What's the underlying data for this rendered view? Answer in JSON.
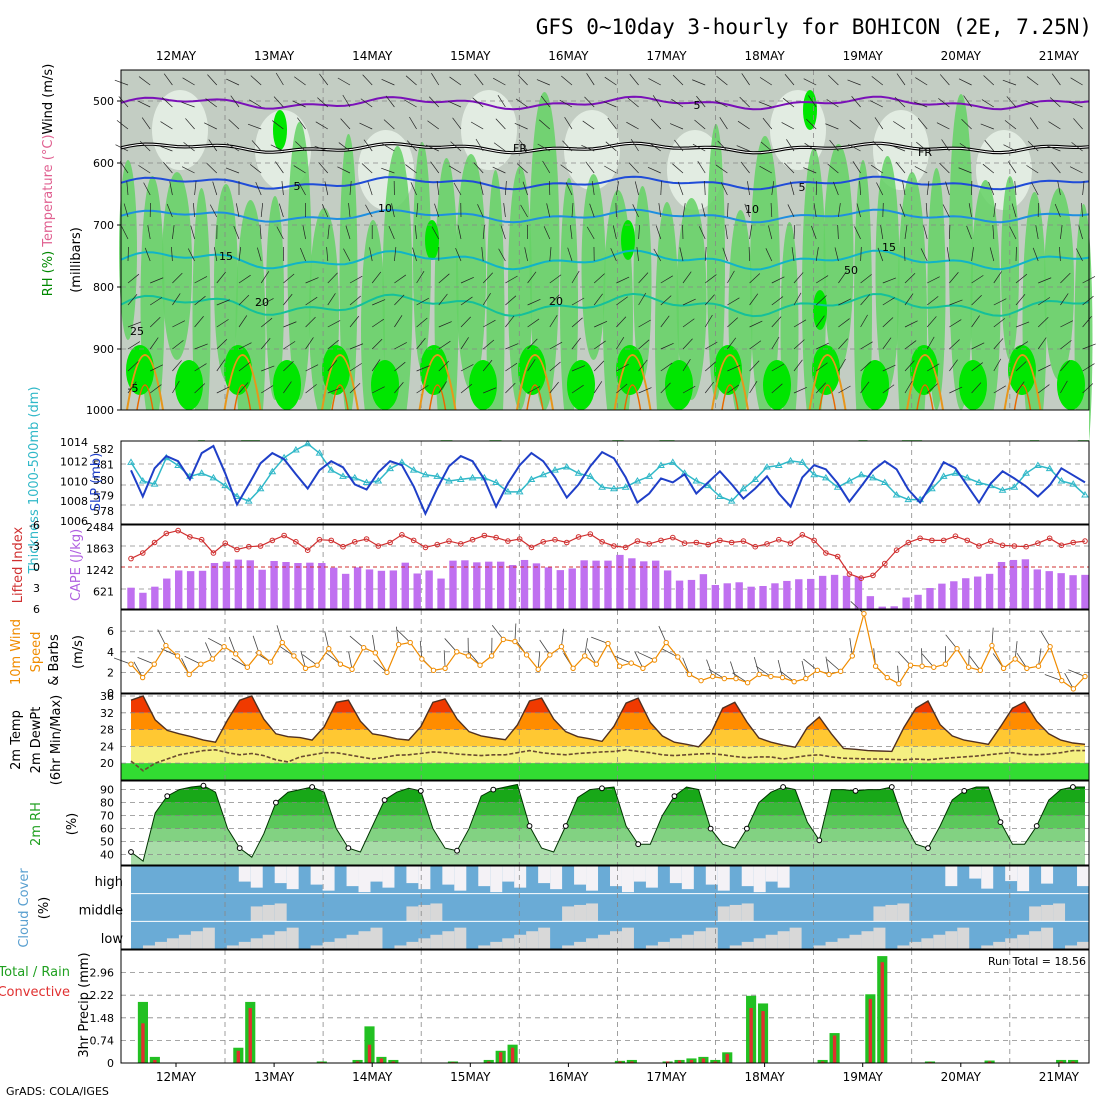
{
  "title": "GFS 0~10day 3-hourly for BOHICON (2E, 7.25N)",
  "footer": "GrADS: COLA/IGES",
  "dates": [
    "12MAY",
    "13MAY",
    "14MAY",
    "15MAY",
    "16MAY",
    "17MAY",
    "18MAY",
    "19MAY",
    "20MAY",
    "21MAY"
  ],
  "colors": {
    "rh_light": "#e6efe6",
    "rh_mid": "#c3cdc3",
    "rh_green": "#64d264",
    "rh_bright": "#00e600",
    "slp": "#1f3fc8",
    "thickness": "#30b8c8",
    "lifted": "#d03030",
    "cape": "#c070f0",
    "wind10": "#f08c00",
    "temp_hot": "#f03a00",
    "temp_warm": "#ff8c00",
    "temp_mid": "#ffc832",
    "temp_yel": "#f5f082",
    "temp_grn": "#32dc32",
    "rh2m": "#00a000",
    "cloud": "#6aabd6",
    "cloud_gap": "#d8d8d8",
    "precip_total": "#22c022",
    "precip_conv": "#e03030"
  },
  "chart_data": [
    {
      "panel": "upper_air",
      "type": "heatmap",
      "ylabel_parts": [
        "RH (%)",
        "Temperature (°C)",
        "Wind (m/s)"
      ],
      "ylabel2": "(millibars)",
      "y_ticks": [
        "500",
        "600",
        "700",
        "800",
        "900",
        "1000"
      ],
      "contour_labels": [
        "5",
        "FR",
        "5",
        "10",
        "15",
        "20",
        "25",
        "-5",
        "5",
        "10",
        "15",
        "20",
        "FR",
        "50"
      ]
    },
    {
      "panel": "slp_thickness",
      "type": "line",
      "left_label": "Thickness 1000-500mb (dm)",
      "right_label": "SLP (mb)",
      "left_ticks": [
        "582",
        "581",
        "580",
        "579",
        "578"
      ],
      "right_ticks": [
        "1014",
        "1012",
        "1010",
        "1008",
        "1006"
      ],
      "series": [
        {
          "name": "SLP (mb)",
          "values": [
            1011.2,
            1008.6,
            1011.4,
            1012.6,
            1012.1,
            1010.3,
            1012.9,
            1013.6,
            1010.9,
            1007.8,
            1009.8,
            1011.9,
            1012.9,
            1012.3,
            1010.8,
            1009.4,
            1011.2,
            1012.1,
            1011.5,
            1009.8,
            1009.3,
            1011.0,
            1012.1,
            1011.7,
            1009.6,
            1006.9,
            1009.4,
            1011.6,
            1012.6,
            1012.1,
            1010.3,
            1007.6,
            1009.9,
            1011.7,
            1012.9,
            1012.1,
            1010.5,
            1008.5,
            1009.8,
            1011.6,
            1013.0,
            1012.4,
            1010.5,
            1008.0,
            1008.9,
            1010.4,
            1010.0,
            1010.8,
            1008.9,
            1010.0,
            1011.1,
            1009.8,
            1008.4,
            1009.4,
            1010.6,
            1008.9,
            1007.6,
            1010.5,
            1011.7,
            1011.3,
            1009.9,
            1008.1,
            1009.6,
            1011.2,
            1012.1,
            1011.3,
            1009.3,
            1008.0,
            1009.9,
            1012.0,
            1011.4,
            1009.7,
            1008.0,
            1009.9,
            1011.1,
            1010.4,
            1009.6,
            1008.6,
            1009.7,
            1011.4,
            1010.7,
            1010.0
          ]
        },
        {
          "name": "Thickness (dm)",
          "values": [
            581.2,
            580.0,
            579.8,
            581.5,
            581.0,
            580.3,
            580.5,
            580.2,
            579.7,
            579.0,
            578.7,
            579.5,
            580.6,
            581.5,
            582.0,
            582.4,
            581.8,
            580.7,
            580.3,
            580.2,
            579.9,
            580.0,
            580.8,
            581.2,
            580.7,
            580.4,
            580.3,
            580.0,
            580.1,
            580.2,
            580.2,
            579.9,
            579.3,
            579.3,
            580.1,
            580.4,
            580.7,
            580.9,
            580.5,
            580.3,
            579.6,
            579.5,
            579.6,
            580.0,
            580.3,
            581.0,
            581.2,
            580.5,
            580.0,
            579.7,
            579.0,
            578.7,
            579.5,
            580.1,
            580.9,
            581.0,
            581.3,
            581.2,
            580.4,
            580.2,
            579.6,
            580.0,
            580.4,
            580.2,
            579.9,
            579.1,
            578.8,
            578.8,
            579.5,
            580.3,
            580.5,
            580.2,
            579.9,
            579.7,
            579.4,
            579.6,
            580.5,
            581.0,
            580.8,
            580.0,
            579.8,
            579.1
          ]
        }
      ]
    },
    {
      "panel": "cape_lifted",
      "type": "bar",
      "left_label": "Lifted Index",
      "right_label": "CAPE (J/kg)",
      "left_ticks": [
        "-6",
        "-3",
        "0",
        "3",
        "6"
      ],
      "right_ticks": [
        "2484",
        "1863",
        "1242",
        "621"
      ],
      "series": [
        {
          "name": "CAPE (J/kg)",
          "values": [
            630,
            480,
            660,
            900,
            1140,
            1120,
            1130,
            1360,
            1400,
            1460,
            1440,
            1160,
            1420,
            1390,
            1360,
            1370,
            1360,
            1220,
            1040,
            1230,
            1170,
            1130,
            1140,
            1370,
            1050,
            1140,
            900,
            1430,
            1440,
            1380,
            1400,
            1400,
            1300,
            1450,
            1350,
            1230,
            1150,
            1200,
            1440,
            1430,
            1430,
            1600,
            1500,
            1410,
            1430,
            1140,
            840,
            860,
            1030,
            710,
            760,
            790,
            660,
            680,
            760,
            830,
            880,
            890,
            980,
            1010,
            980,
            950,
            380,
            70,
            80,
            340,
            420,
            620,
            750,
            820,
            910,
            960,
            1040,
            1390,
            1450,
            1470,
            1170,
            1120,
            1060,
            1000,
            1010
          ]
        },
        {
          "name": "Lifted Index",
          "values": [
            -1.2,
            -2.0,
            -3.5,
            -4.8,
            -5.2,
            -4.3,
            -3.9,
            -2.0,
            -3.4,
            -2.5,
            -2.9,
            -3.0,
            -3.8,
            -4.5,
            -3.6,
            -2.4,
            -3.9,
            -3.8,
            -2.9,
            -3.6,
            -4.0,
            -3.0,
            -3.5,
            -4.6,
            -3.8,
            -2.8,
            -3.2,
            -3.7,
            -3.3,
            -3.9,
            -4.5,
            -4.2,
            -3.7,
            -4.0,
            -2.8,
            -3.6,
            -3.9,
            -3.5,
            -4.3,
            -4.7,
            -3.6,
            -3.0,
            -2.8,
            -3.7,
            -3.3,
            -3.8,
            -4.2,
            -3.4,
            -3.5,
            -3.2,
            -3.8,
            -3.5,
            -3.7,
            -2.9,
            -3.3,
            -3.9,
            -3.4,
            -4.6,
            -3.8,
            -2.0,
            -1.5,
            1.0,
            1.6,
            1.2,
            -0.5,
            -2.4,
            -3.5,
            -4.1,
            -3.8,
            -3.8,
            -4.4,
            -3.8,
            -3.0,
            -3.7,
            -3.1,
            -3.0,
            -2.9,
            -3.4,
            -4.1,
            -3.1,
            -3.5,
            -3.7
          ]
        }
      ]
    },
    {
      "panel": "wind10m",
      "type": "line",
      "ylabel_parts": [
        "10m Wind",
        "Speed",
        "& Barbs"
      ],
      "ylabel2": "(m/s)",
      "y_ticks": [
        "0",
        "2",
        "4",
        "6"
      ],
      "series": [
        {
          "name": "Speed (m/s)",
          "values": [
            2.8,
            1.5,
            2.8,
            4.6,
            3.6,
            1.8,
            2.8,
            3.3,
            4.5,
            3.8,
            2.5,
            3.9,
            3.0,
            4.9,
            3.6,
            2.4,
            2.7,
            4.3,
            2.8,
            2.3,
            4.4,
            3.9,
            2.0,
            4.7,
            4.9,
            3.3,
            2.2,
            2.4,
            4.0,
            3.6,
            2.7,
            3.6,
            5.2,
            5.0,
            3.7,
            2.3,
            3.7,
            4.5,
            2.4,
            3.6,
            2.8,
            4.8,
            2.6,
            2.9,
            2.4,
            3.2,
            4.9,
            3.5,
            1.8,
            1.2,
            1.6,
            1.4,
            1.4,
            1.0,
            1.8,
            1.6,
            1.5,
            1.1,
            1.4,
            2.2,
            1.8,
            2.1,
            3.6,
            7.7,
            2.6,
            1.5,
            0.9,
            2.7,
            2.6,
            2.5,
            2.8,
            4.3,
            2.5,
            2.2,
            4.6,
            2.4,
            3.3,
            2.4,
            2.6,
            4.5,
            1.2,
            0.4,
            1.6
          ]
        }
      ]
    },
    {
      "panel": "temp2m",
      "type": "area",
      "ylabel_parts": [
        "2m Temp",
        "2m DewPt",
        "(6hr Min/Max)"
      ],
      "y_ticks": [
        "20",
        "24",
        "28",
        "32",
        "36"
      ],
      "series": [
        {
          "name": "2m Temp (°C)",
          "values": [
            35.0,
            36.0,
            30.3,
            27.8,
            27.0,
            26.3,
            25.5,
            25.0,
            30.3,
            35.0,
            36.0,
            30.5,
            27.0,
            26.3,
            26.1,
            25.5,
            28.7,
            34.5,
            35.0,
            30.0,
            27.0,
            26.5,
            25.8,
            25.5,
            28.7,
            34.5,
            35.3,
            30.5,
            27.5,
            26.5,
            26.0,
            25.6,
            29.1,
            34.8,
            35.5,
            30.5,
            27.5,
            26.3,
            25.8,
            25.2,
            28.8,
            34.3,
            35.5,
            29.7,
            26.5,
            25.0,
            24.5,
            23.9,
            27.0,
            33.1,
            34.5,
            29.8,
            26.0,
            25.0,
            24.3,
            23.8,
            28.5,
            31.0,
            27.0,
            23.5,
            23.3,
            23.0,
            22.9,
            22.8,
            28.5,
            33.1,
            34.8,
            29.2,
            26.5,
            25.5,
            25.0,
            24.5,
            28.7,
            33.1,
            34.6,
            30.0,
            27.0,
            25.5,
            24.8,
            24.5
          ]
        },
        {
          "name": "2m DewPt (°C)",
          "values": [
            20.5,
            18.2,
            20.0,
            21.0,
            22.0,
            22.5,
            23.0,
            23.2,
            22.5,
            22.0,
            22.3,
            21.8,
            20.8,
            20.3,
            21.5,
            22.0,
            22.5,
            22.5,
            22.0,
            21.5,
            21.0,
            21.4,
            21.9,
            22.0,
            22.3,
            22.7,
            22.5,
            22.2,
            22.0,
            21.8,
            22.0,
            22.0,
            22.5,
            23.0,
            22.5,
            22.2,
            22.0,
            22.3,
            22.5,
            22.7,
            22.8,
            23.2,
            22.8,
            22.5,
            22.0,
            21.8,
            22.0,
            22.2,
            22.3,
            22.0,
            21.6,
            21.3,
            21.5,
            21.5,
            21.0,
            21.4,
            21.8,
            22.0,
            21.5,
            21.2,
            21.1,
            21.0,
            21.0,
            20.9,
            20.8,
            21.0,
            20.8,
            21.1,
            21.3,
            21.5,
            21.7,
            22.0,
            22.3,
            22.5,
            22.1,
            22.0,
            22.2,
            22.5,
            23.0,
            23.0
          ]
        }
      ]
    },
    {
      "panel": "rh2m",
      "type": "area",
      "ylabel": "2m RH",
      "ylabel2": "(%)",
      "y_ticks": [
        "40",
        "50",
        "60",
        "70",
        "80",
        "90"
      ],
      "series": [
        {
          "name": "2m RH (%)",
          "values": [
            42,
            35,
            72,
            85,
            90,
            92,
            93,
            88,
            60,
            45,
            38,
            56,
            80,
            88,
            90,
            92,
            88,
            60,
            45,
            42,
            62,
            82,
            88,
            91,
            89,
            60,
            45,
            43,
            60,
            85,
            90,
            92,
            94,
            62,
            45,
            42,
            62,
            84,
            90,
            91,
            92,
            62,
            48,
            48,
            70,
            85,
            92,
            90,
            60,
            48,
            45,
            60,
            80,
            88,
            92,
            90,
            65,
            51,
            90,
            90,
            89,
            90,
            90,
            92,
            65,
            48,
            45,
            62,
            82,
            89,
            92,
            92,
            65,
            48,
            48,
            62,
            82,
            90,
            92,
            92
          ]
        }
      ]
    },
    {
      "panel": "cloud",
      "type": "heatmap",
      "ylabel": "Cloud Cover",
      "ylabel2": "(%)",
      "rows": [
        "high",
        "middle",
        "low"
      ]
    },
    {
      "panel": "precip",
      "type": "bar",
      "ylabel_parts": [
        "Total / Rain",
        "Convective"
      ],
      "ylabel2": "3hr Precip (mm)",
      "y_ticks": [
        "0",
        "0.74",
        "1.48",
        "2.22",
        "2.96"
      ],
      "ylim": [
        0,
        3.7
      ],
      "annotation": "Run Total = 18.56",
      "series": [
        {
          "name": "Total",
          "values": [
            0,
            2.0,
            0.2,
            0,
            0,
            0,
            0,
            0,
            0,
            0.5,
            2.0,
            0,
            0,
            0,
            0,
            0,
            0.05,
            0,
            0,
            0.1,
            1.2,
            0.2,
            0.1,
            0,
            0,
            0,
            0,
            0.05,
            0,
            0,
            0.1,
            0.4,
            0.6,
            0,
            0,
            0,
            0,
            0,
            0,
            0,
            0,
            0.07,
            0.1,
            0,
            0,
            0.05,
            0.1,
            0.15,
            0.2,
            0.1,
            0.35,
            0,
            2.2,
            1.95,
            0,
            0,
            0,
            0,
            0.1,
            0.98,
            0,
            0,
            2.25,
            3.5,
            0,
            0,
            0,
            0.05,
            0,
            0,
            0,
            0,
            0.08,
            0,
            0,
            0,
            0,
            0,
            0.1,
            0.1,
            0
          ]
        },
        {
          "name": "Convective",
          "values": [
            0,
            1.3,
            0.1,
            0,
            0,
            0,
            0,
            0,
            0,
            0.4,
            1.8,
            0,
            0,
            0,
            0,
            0,
            0.03,
            0,
            0,
            0.05,
            0.6,
            0.15,
            0.05,
            0,
            0,
            0,
            0,
            0.03,
            0,
            0,
            0.05,
            0.35,
            0.5,
            0,
            0,
            0,
            0,
            0,
            0,
            0,
            0,
            0.05,
            0.05,
            0,
            0,
            0.05,
            0.08,
            0.1,
            0.15,
            0.05,
            0.3,
            0,
            1.8,
            1.7,
            0,
            0,
            0,
            0,
            0.05,
            0.9,
            0,
            0,
            2.1,
            3.3,
            0,
            0,
            0,
            0.03,
            0,
            0,
            0,
            0,
            0.05,
            0,
            0,
            0,
            0,
            0,
            0.05,
            0.05,
            0
          ]
        }
      ]
    }
  ]
}
